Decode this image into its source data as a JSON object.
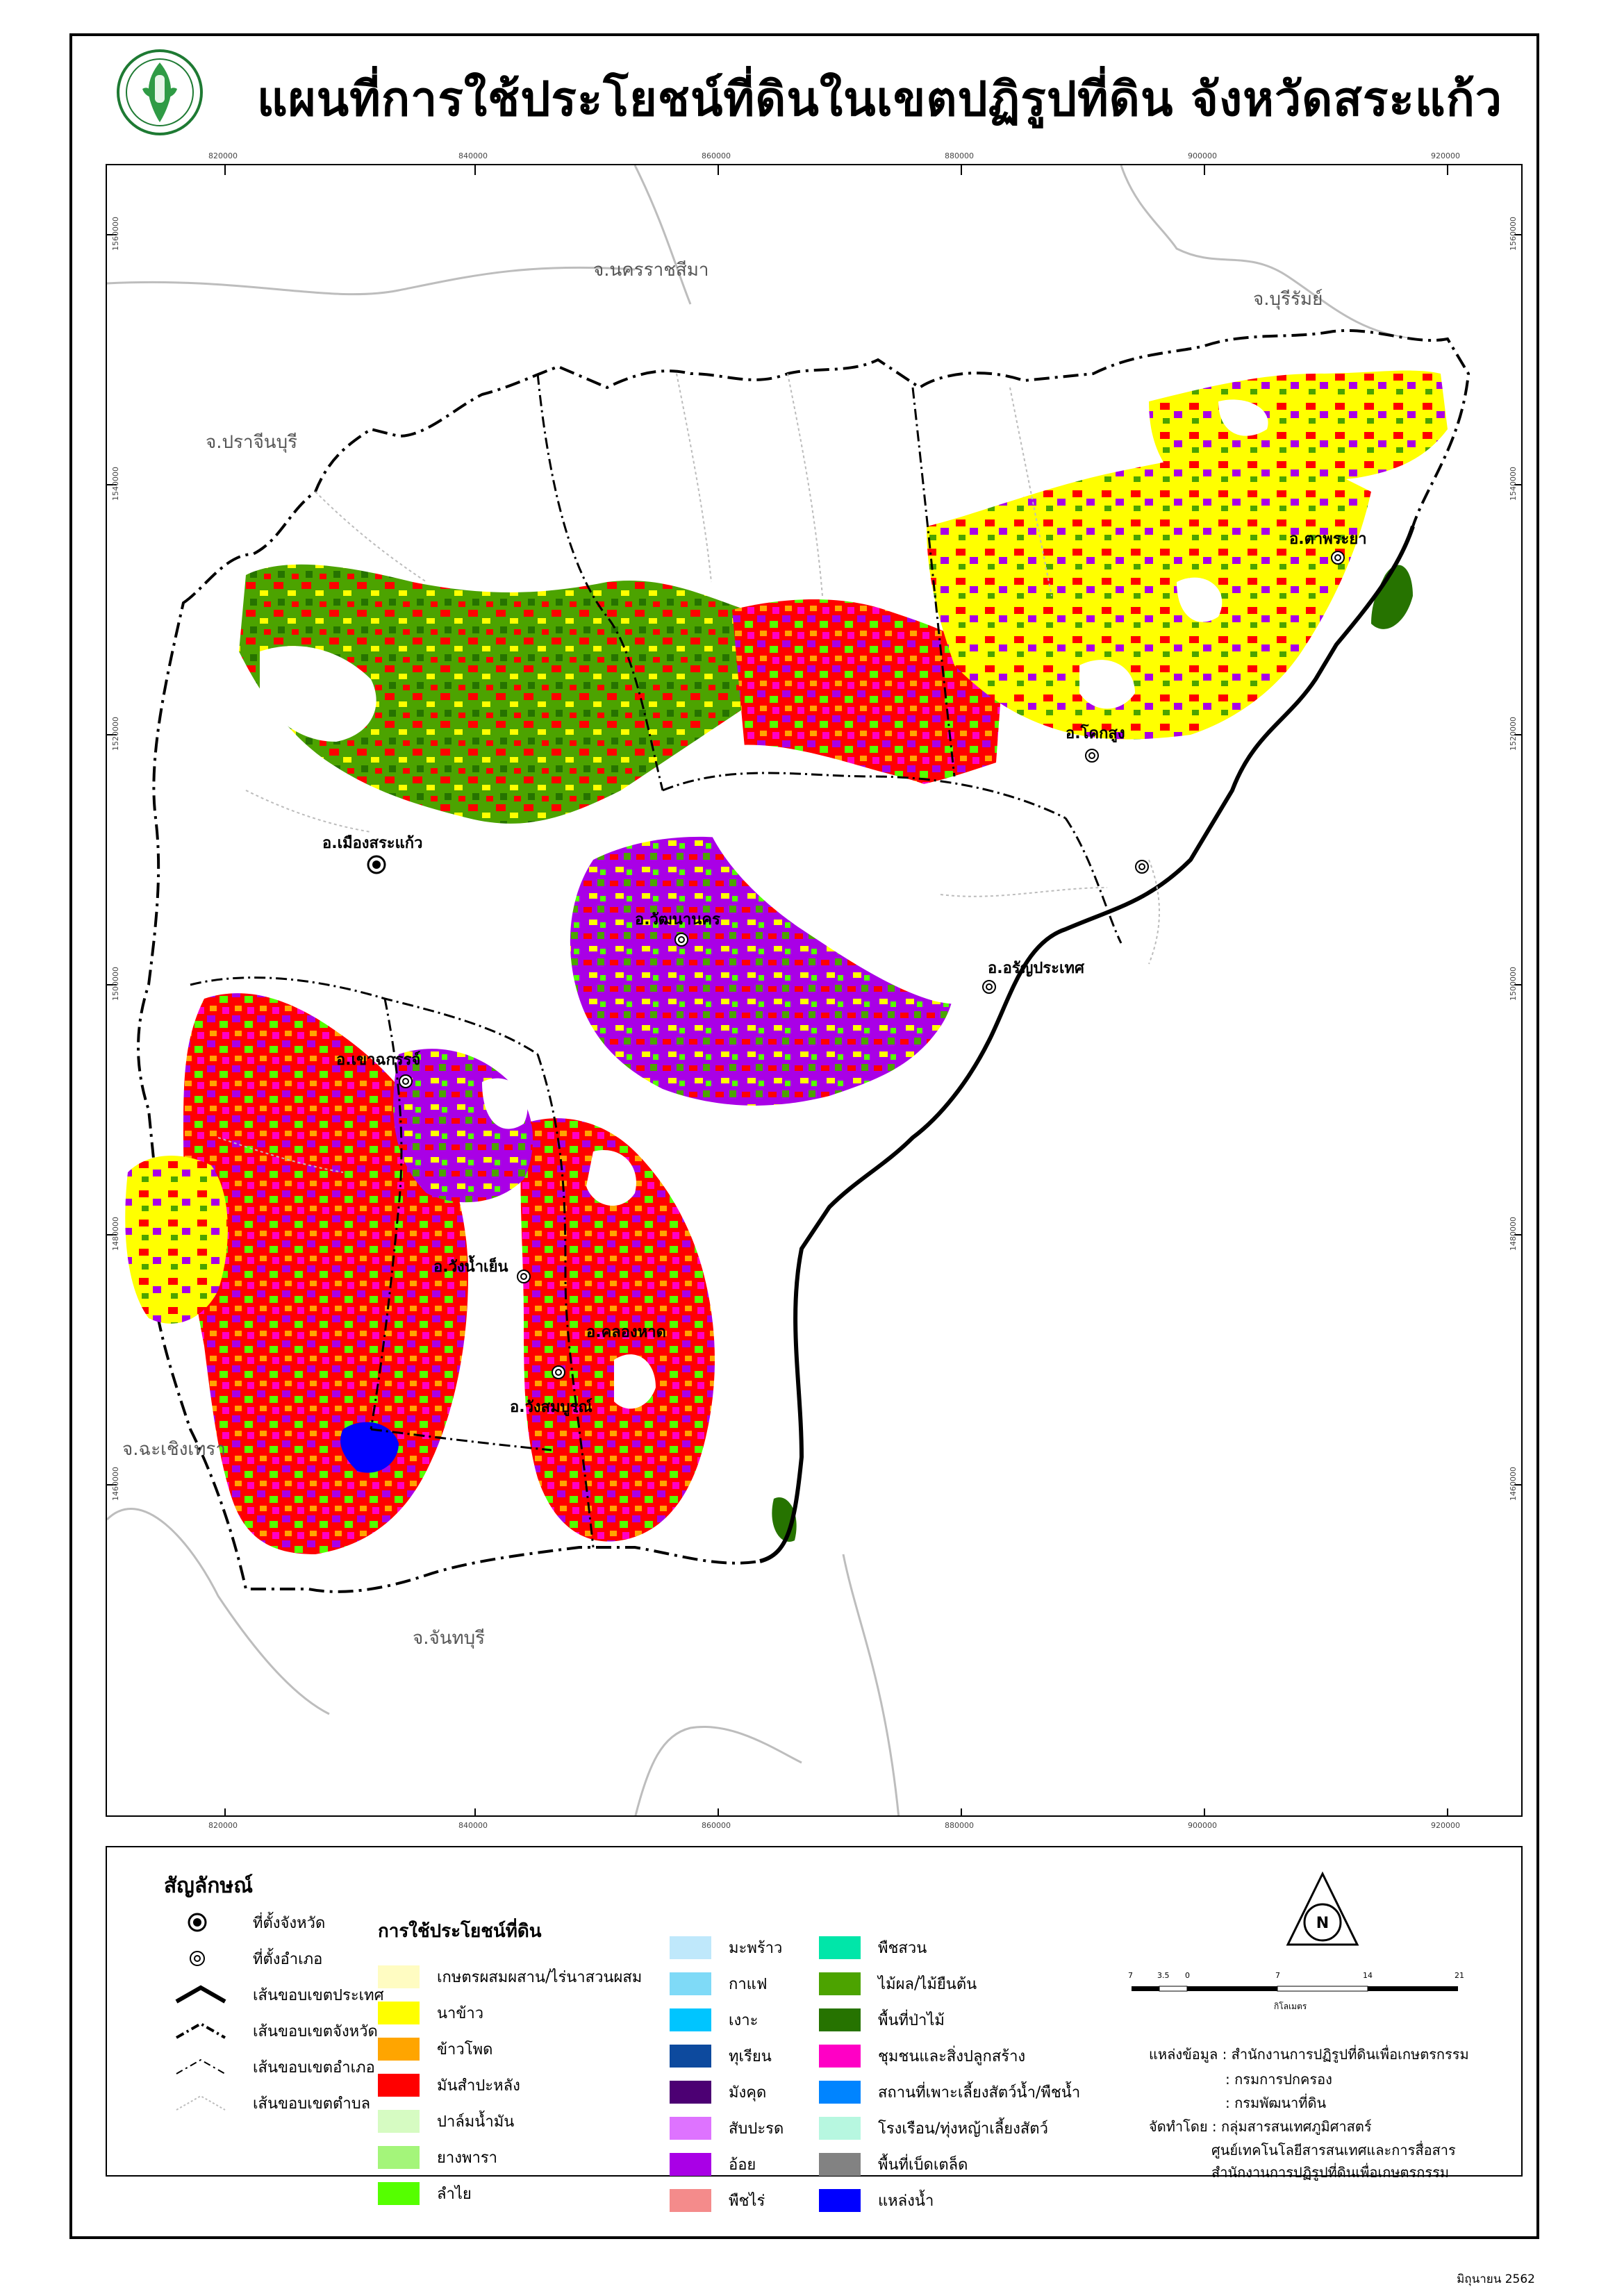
{
  "title": "แผนที่การใช้ประโยชน์ที่ดินในเขตปฏิรูปที่ดิน จังหวัดสระแก้ว",
  "grid": {
    "x_labels": [
      "820000",
      "840000",
      "860000",
      "880000",
      "900000",
      "920000"
    ],
    "y_labels": [
      "1560000",
      "1540000",
      "1520000",
      "1500000",
      "1480000",
      "1460000"
    ]
  },
  "neighbors": {
    "nakhon_ratchasima": "จ.นครราชสีมา",
    "buriram": "จ.บุรีรัมย์",
    "prachinburi": "จ.ปราจีนบุรี",
    "chachoengsao": "จ.ฉะเชิงเทรา",
    "chanthaburi": "จ.จันทบุรี"
  },
  "districts": {
    "mueang": "อ.เมืองสระแก้ว",
    "watthana_nakhon": "อ.วัฒนานคร",
    "aranyaprathet": "อ.อรัญประเทศ",
    "ta_phraya": "อ.ตาพระยา",
    "khok_sung": "อ.โคกสูง",
    "khao_chakan": "อ.เขาฉกรรจ์",
    "wang_nam_yen": "อ.วังน้ำเย็น",
    "khlong_hat": "อ.คลองหาด",
    "wang_sombun": "อ.วังสมบูรณ์",
    "khok_sung_short": "อ.โคกสูง"
  },
  "legend": {
    "symbol_title": "สัญลักษณ์",
    "symbols": {
      "province_seat": "ที่ตั้งจังหวัด",
      "district_seat": "ที่ตั้งอำเภอ",
      "country_border": "เส้นขอบเขตประเทศ",
      "province_border": "เส้นขอบเขตจังหวัด",
      "district_border": "เส้นขอบเขตอำเภอ",
      "subdistrict_border": "เส้นขอบเขตตำบล"
    },
    "landuse_title": "การใช้ประโยชน์ที่ดิน",
    "col1": [
      {
        "label": "เกษตรผสมผสาน/ไร่นาสวนผสม",
        "color": "#fffcc2"
      },
      {
        "label": "นาข้าว",
        "color": "#ffff00"
      },
      {
        "label": "ข้าวโพด",
        "color": "#ffa500"
      },
      {
        "label": "มันสำปะหลัง",
        "color": "#ff0000"
      },
      {
        "label": "ปาล์มน้ำมัน",
        "color": "#d6fbc2"
      },
      {
        "label": "ยางพารา",
        "color": "#a4f57a"
      },
      {
        "label": "ลำไย",
        "color": "#55ff00"
      }
    ],
    "col2": [
      {
        "label": "มะพร้าว",
        "color": "#bfe8fb"
      },
      {
        "label": "กาแฟ",
        "color": "#7fdaf7"
      },
      {
        "label": "เงาะ",
        "color": "#00c5ff"
      },
      {
        "label": "ทุเรียน",
        "color": "#0d4a9e"
      },
      {
        "label": "มังคุด",
        "color": "#4c0073"
      },
      {
        "label": "สับปะรด",
        "color": "#de73ff"
      },
      {
        "label": "อ้อย",
        "color": "#a900e6"
      },
      {
        "label": "พืชไร่",
        "color": "#f48b8b"
      }
    ],
    "col3": [
      {
        "label": "พืชสวน",
        "color": "#00e6a9"
      },
      {
        "label": "ไม้ผล/ไม้ยืนต้น",
        "color": "#4ca300"
      },
      {
        "label": "พื้นที่ป่าไม้",
        "color": "#267300"
      },
      {
        "label": "ชุมชนและสิ่งปลูกสร้าง",
        "color": "#ff00c5"
      },
      {
        "label": "สถานที่เพาะเลี้ยงสัตว์น้ำ/พืชน้ำ",
        "color": "#0084ff"
      },
      {
        "label": "โรงเรือน/ทุ่งหญ้าเลี้ยงสัตว์",
        "color": "#b7f7e0"
      },
      {
        "label": "พื้นที่เบ็ดเตล็ด",
        "color": "#828282"
      },
      {
        "label": "แหล่งน้ำ",
        "color": "#0000ff"
      }
    ],
    "scale_label": "กิโลเมตร",
    "scale_ticks": [
      "7",
      "3.5",
      "0",
      "7",
      "14",
      "21"
    ],
    "north_label": "N",
    "source": {
      "line1": "แหล่งข้อมูล : สำนักงานการปฏิรูปที่ดินเพื่อเกษตรกรรม",
      "line2": ": กรมการปกครอง",
      "line3": ": กรมพัฒนาที่ดิน",
      "line4": "จัดทำโดย : กลุ่มสารสนเทศภูมิศาสตร์",
      "line5": "ศูนย์เทคโนโลยีสารสนเทศและการสื่อสาร",
      "line6": "สำนักงานการปฏิรูปที่ดินเพื่อเกษตรกรรม"
    }
  },
  "footer_date": "มิถุนายน 2562"
}
